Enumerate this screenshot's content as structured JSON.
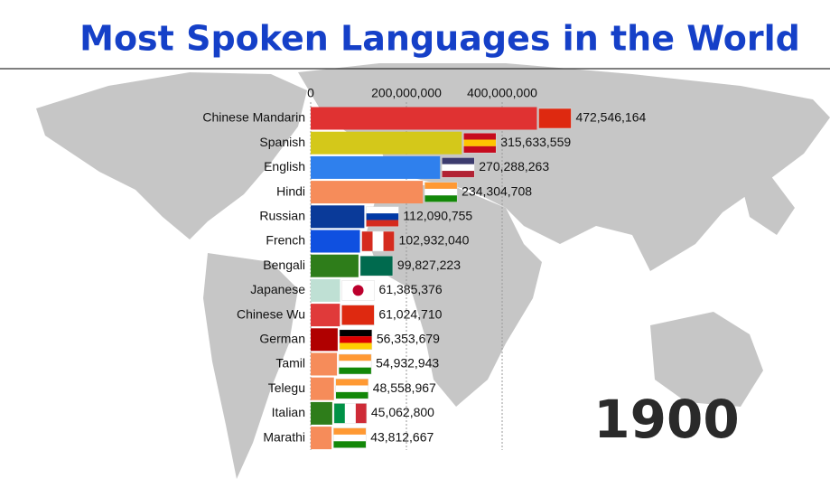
{
  "chart_data": {
    "type": "bar",
    "orientation": "horizontal",
    "title": "Most Spoken Languages in the World",
    "annotation": "1900",
    "categories": [
      "Chinese Mandarin",
      "Spanish",
      "English",
      "Hindi",
      "Russian",
      "French",
      "Bengali",
      "Japanese",
      "Chinese Wu",
      "German",
      "Tamil",
      "Telegu",
      "Italian",
      "Marathi"
    ],
    "values": [
      472546164,
      315633559,
      270288263,
      234304708,
      112090755,
      102932040,
      99827223,
      61385376,
      61024710,
      56353679,
      54932943,
      48558967,
      45062800,
      43812667
    ],
    "value_labels": [
      "472,546,164",
      "315,633,559",
      "270,288,263",
      "234,304,708",
      "112,090,755",
      "102,932,040",
      "99,827,223",
      "61,385,376",
      "61,024,710",
      "56,353,679",
      "54,932,943",
      "48,558,967",
      "45,062,800",
      "43,812,667"
    ],
    "colors": [
      "#e03232",
      "#d4c81a",
      "#2f80ed",
      "#f68c5a",
      "#0a3a99",
      "#0f50e0",
      "#2e7d1a",
      "#bfe0d4",
      "#e03a3a",
      "#b00000",
      "#f68c5a",
      "#f68c5a",
      "#2e7d1a",
      "#f68c5a"
    ],
    "xlim": [
      0,
      1000000000
    ],
    "xticks": [
      0,
      {
        "value": 200000000,
        "label": "200,000,000"
      },
      {
        "value": 400000000,
        "label": "400,000,000"
      }
    ],
    "grid": true
  }
}
